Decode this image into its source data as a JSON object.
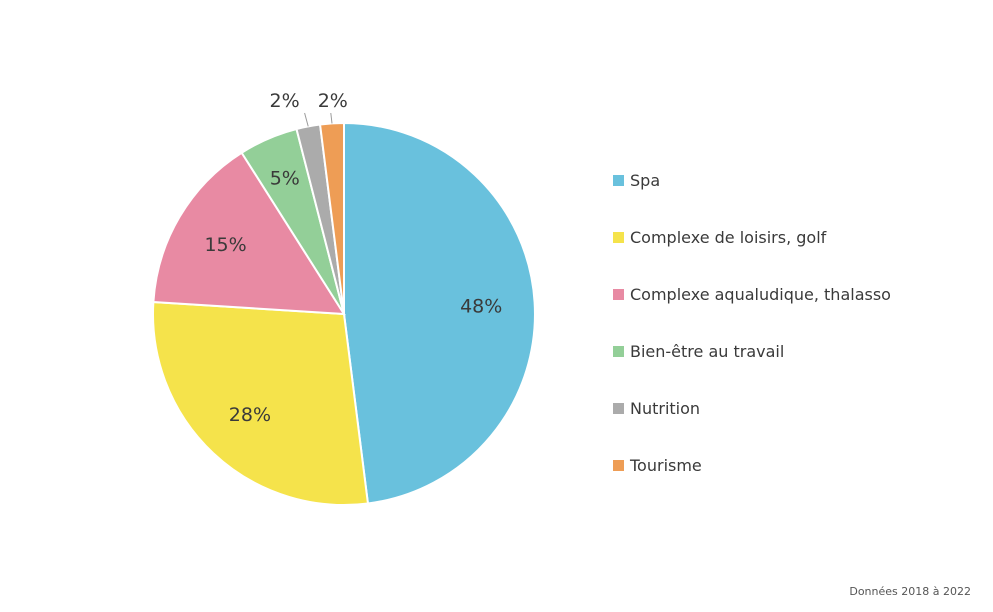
{
  "chart_data": {
    "type": "pie",
    "categories": [
      "Spa",
      "Complexe de loisirs, golf",
      "Complexe aqualudique, thalasso",
      "Bien-être au travail",
      "Nutrition",
      "Tourisme"
    ],
    "values": [
      48,
      28,
      15,
      5,
      2,
      2
    ],
    "labels": [
      "48%",
      "28%",
      "15%",
      "5%",
      "2%",
      "2%"
    ],
    "colors": [
      "#69C1DD",
      "#F5E34B",
      "#E88AA3",
      "#93CF98",
      "#ABABAB",
      "#EE9D55"
    ],
    "start_angle": "top",
    "direction": "clockwise",
    "legend_position": "right"
  },
  "footnote": "Données 2018 à 2022"
}
